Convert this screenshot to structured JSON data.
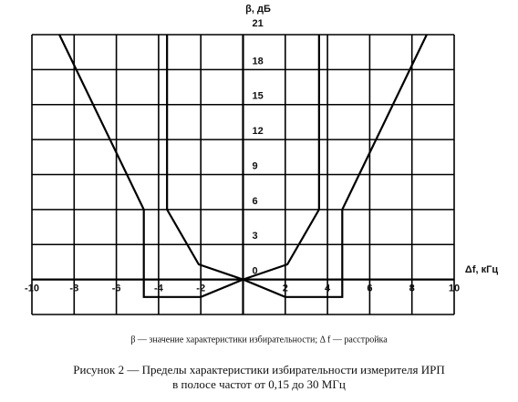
{
  "chart_data": {
    "type": "line",
    "y_label": "β, дБ",
    "x_label": "Δf, кГц",
    "xlim": [
      -10,
      10
    ],
    "xticks": [
      -10,
      -8,
      -6,
      -4,
      -2,
      2,
      4,
      6,
      8,
      10
    ],
    "ylim": [
      -3,
      21
    ],
    "yticks": [
      0,
      3,
      6,
      9,
      12,
      15,
      18,
      21
    ],
    "grid": true,
    "series": [
      {
        "color": "#000000",
        "x": [
          -8.7,
          -4.7,
          -4.7,
          -2,
          0,
          2,
          4.7,
          4.7,
          8.7
        ],
        "values": [
          21,
          6,
          -1.5,
          -1.5,
          0,
          -1.5,
          -1.5,
          6,
          21
        ]
      },
      {
        "color": "#000000",
        "x": [
          -3.6,
          -3.6,
          -2.1,
          0,
          2.1,
          3.6,
          3.6
        ],
        "values": [
          21,
          6,
          1.3,
          0,
          1.3,
          6,
          21
        ]
      }
    ],
    "note": "β — значение характеристики избирательности; Δ f — расстройка",
    "caption": [
      "Рисунок 2 — Пределы  характеристики  избирательности измерителя ИРП",
      "в полосе частот от 0,15 до 30 МГц"
    ]
  }
}
